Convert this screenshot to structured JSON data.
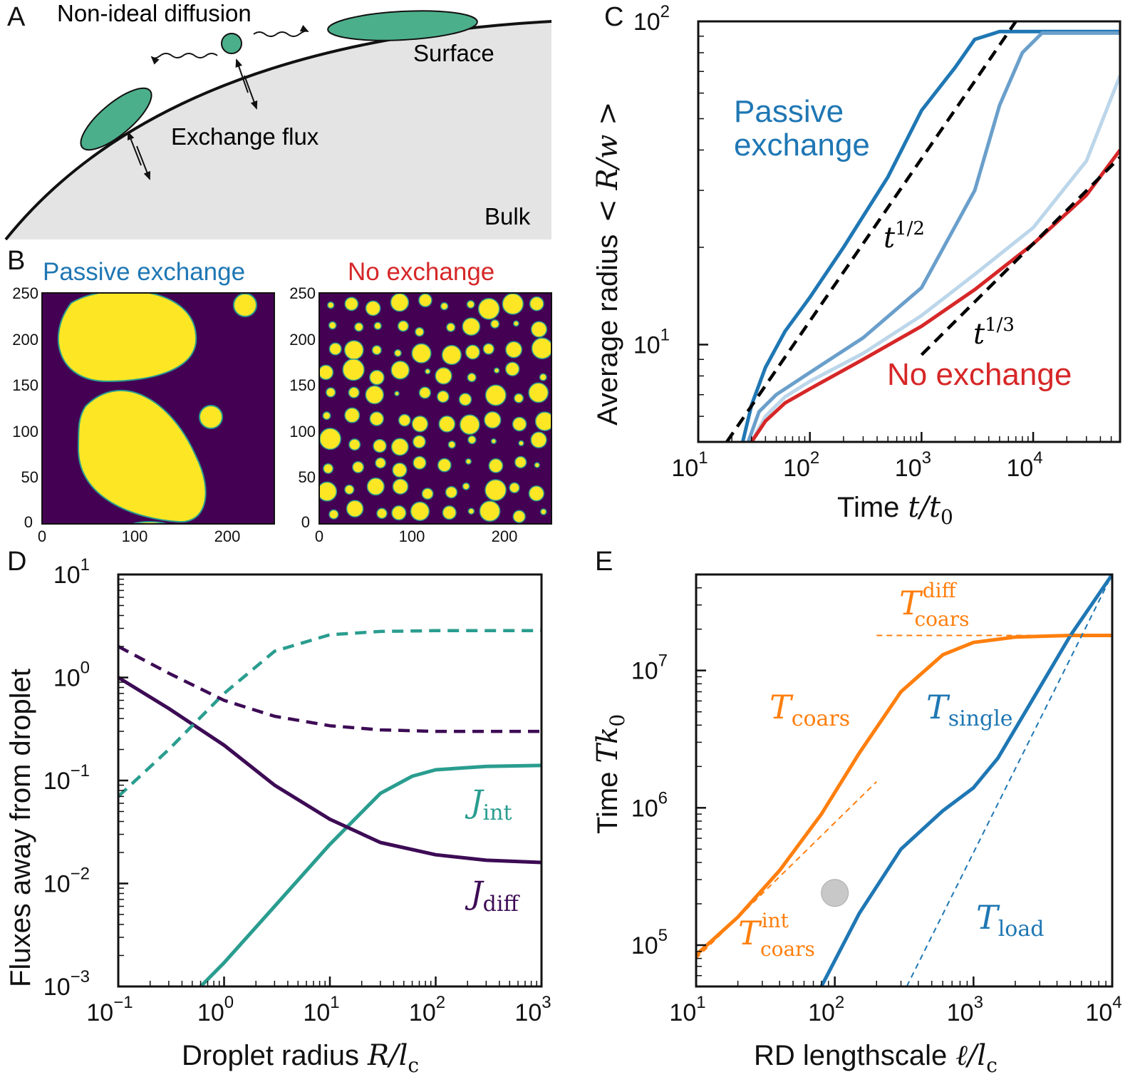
{
  "colors": {
    "passive": "#1f77b4",
    "no_exchange": "#d62728",
    "teal": "#2a9d8f",
    "purple": "#3d0b55",
    "orange": "#ff7f0e",
    "droplet": "#4caf8c",
    "bulk": "#e4e4e4",
    "img_bg": "#440154",
    "img_fg": "#fde725"
  },
  "panelA": {
    "letter": "A",
    "labels": {
      "nonideal": "Non-ideal diffusion",
      "surface": "Surface",
      "exchange": "Exchange flux",
      "bulk": "Bulk"
    }
  },
  "panelB": {
    "letter": "B",
    "left_title": "Passive exchange",
    "right_title": "No exchange",
    "y_ticks": [
      "250",
      "200",
      "150",
      "100",
      "50",
      "0"
    ],
    "x_ticks": [
      "0",
      "100",
      "200"
    ]
  },
  "panelC": {
    "letter": "C",
    "label_passive_1": "Passive",
    "label_passive_2": "exchange",
    "label_none": "No exchange",
    "label_half": {
      "base": "t",
      "exp": "1/2"
    },
    "label_third": {
      "base": "t",
      "exp": "1/3"
    },
    "ylabel": "Average radius",
    "ylabel_math": "< R/w >",
    "xlabel": "Time",
    "xlabel_math": "t/t",
    "xlabel_sub": "0"
  },
  "panelD": {
    "letter": "D",
    "ylabel": "Fluxes away from droplet",
    "xlabel": "Droplet radius",
    "xlabel_math": "R/l",
    "xlabel_sub": "c",
    "label_int": {
      "base": "J",
      "sub": "int"
    },
    "label_diff": {
      "base": "J",
      "sub": "diff"
    }
  },
  "panelE": {
    "letter": "E",
    "ylabel": "Time",
    "ylabel_math": "Tk",
    "ylabel_sub": "0",
    "xlabel": "RD lengthscale",
    "xlabel_math": "ℓ/l",
    "xlabel_sub": "c",
    "label_coars_diff": {
      "base": "T",
      "sup": "diff",
      "sub": "coars"
    },
    "label_coars": {
      "base": "T",
      "sub": "coars"
    },
    "label_single": {
      "base": "T",
      "sub": "single"
    },
    "label_coars_int": {
      "base": "T",
      "sup": "int",
      "sub": "coars"
    },
    "label_load": {
      "base": "T",
      "sub": "load"
    }
  },
  "chart_data": [
    {
      "id": "C",
      "type": "line",
      "xscale": "log",
      "yscale": "log",
      "xlim": [
        10,
        60000
      ],
      "ylim": [
        5,
        100
      ],
      "x_ticks": [
        {
          "base": "10",
          "exp": "1"
        },
        {
          "base": "10",
          "exp": "2"
        },
        {
          "base": "10",
          "exp": "3"
        },
        {
          "base": "10",
          "exp": "4"
        }
      ],
      "y_ticks": [
        {
          "base": "10",
          "exp": "1"
        },
        {
          "base": "10",
          "exp": "2"
        }
      ],
      "series": [
        {
          "name": "Passive exchange",
          "color": "#1f77b4",
          "x": [
            25,
            30,
            40,
            60,
            100,
            200,
            500,
            1000,
            2000,
            3000,
            5000,
            60000
          ],
          "y": [
            5,
            6.5,
            8.5,
            11,
            14,
            20,
            33,
            53,
            72,
            88,
            93,
            93
          ]
        },
        {
          "name": "intermediate 1",
          "color": "#6a9fcb",
          "x": [
            28,
            35,
            50,
            100,
            300,
            1000,
            3000,
            5000,
            8000,
            12000,
            60000
          ],
          "y": [
            5,
            6.2,
            7,
            8.2,
            10.5,
            15,
            30,
            55,
            80,
            92,
            92
          ]
        },
        {
          "name": "intermediate 2",
          "color": "#bcd6ea",
          "x": [
            30,
            40,
            60,
            100,
            300,
            1000,
            3000,
            10000,
            30000,
            60000
          ],
          "y": [
            5,
            6,
            6.9,
            7.7,
            9.4,
            12.3,
            16.5,
            23,
            37,
            68
          ]
        },
        {
          "name": "No exchange",
          "color": "#d62728",
          "x": [
            30,
            40,
            60,
            100,
            300,
            1000,
            3000,
            10000,
            30000,
            60000
          ],
          "y": [
            5,
            5.8,
            6.6,
            7.3,
            9,
            11.4,
            14.8,
            20.5,
            29,
            40
          ]
        },
        {
          "name": "t^1/2",
          "style": "dashed",
          "color": "#000000",
          "x": [
            18,
            7000
          ],
          "y": [
            5,
            100
          ]
        },
        {
          "name": "t^1/3",
          "style": "dashed",
          "color": "#000000",
          "x": [
            1000,
            60000
          ],
          "y": [
            9.3,
            38
          ]
        }
      ]
    },
    {
      "id": "D",
      "type": "line",
      "xscale": "log",
      "yscale": "log",
      "xlim": [
        0.1,
        1000
      ],
      "ylim": [
        0.001,
        10
      ],
      "x_ticks": [
        {
          "base": "10",
          "exp": "−1"
        },
        {
          "base": "10",
          "exp": "0"
        },
        {
          "base": "10",
          "exp": "1"
        },
        {
          "base": "10",
          "exp": "2"
        },
        {
          "base": "10",
          "exp": "3"
        }
      ],
      "y_ticks": [
        {
          "base": "10",
          "exp": "−3"
        },
        {
          "base": "10",
          "exp": "−2"
        },
        {
          "base": "10",
          "exp": "−1"
        },
        {
          "base": "10",
          "exp": "0"
        },
        {
          "base": "10",
          "exp": "1"
        }
      ],
      "series": [
        {
          "name": "J_int (solid)",
          "color": "#2a9d8f",
          "x": [
            0.6,
            1,
            3,
            10,
            30,
            60,
            100,
            300,
            1000
          ],
          "y": [
            0.001,
            0.0017,
            0.006,
            0.024,
            0.075,
            0.11,
            0.127,
            0.137,
            0.14
          ]
        },
        {
          "name": "J_diff (solid)",
          "color": "#3d0b55",
          "x": [
            0.1,
            0.3,
            1,
            3,
            10,
            30,
            100,
            300,
            1000
          ],
          "y": [
            1,
            0.5,
            0.22,
            0.09,
            0.042,
            0.025,
            0.019,
            0.0168,
            0.016
          ]
        },
        {
          "name": "J_int (dashed)",
          "color": "#2a9d8f",
          "style": "dashed",
          "x": [
            0.1,
            0.3,
            1,
            3,
            10,
            30,
            100,
            1000
          ],
          "y": [
            0.07,
            0.2,
            0.7,
            1.8,
            2.6,
            2.8,
            2.85,
            2.85
          ]
        },
        {
          "name": "J_diff (dashed)",
          "color": "#3d0b55",
          "style": "dashed",
          "x": [
            0.1,
            0.3,
            1,
            3,
            10,
            30,
            100,
            1000
          ],
          "y": [
            2,
            1.1,
            0.6,
            0.42,
            0.34,
            0.31,
            0.3,
            0.3
          ]
        }
      ]
    },
    {
      "id": "E",
      "type": "line",
      "xscale": "log",
      "yscale": "log",
      "xlim": [
        10,
        10000
      ],
      "ylim": [
        50000,
        50000000
      ],
      "x_ticks": [
        {
          "base": "10",
          "exp": "1"
        },
        {
          "base": "10",
          "exp": "2"
        },
        {
          "base": "10",
          "exp": "3"
        },
        {
          "base": "10",
          "exp": "4"
        }
      ],
      "y_ticks": [
        {
          "base": "10",
          "exp": "5"
        },
        {
          "base": "10",
          "exp": "6"
        },
        {
          "base": "10",
          "exp": "7"
        }
      ],
      "series": [
        {
          "name": "T_coars",
          "color": "#ff7f0e",
          "x": [
            10,
            20,
            40,
            80,
            150,
            300,
            600,
            1000,
            2000,
            5000,
            10000
          ],
          "y": [
            85000,
            160000,
            350000,
            900000,
            2500000,
            7000000,
            13000000,
            16000000,
            17500000,
            18000000,
            18000000
          ]
        },
        {
          "name": "T_single",
          "color": "#1f77b4",
          "x": [
            80,
            150,
            300,
            600,
            1000,
            1500,
            2500,
            5000,
            10000
          ],
          "y": [
            50000,
            170000,
            500000,
            950000,
            1400000,
            2300000,
            5500000,
            18000000,
            50000000
          ]
        },
        {
          "name": "T_coars^diff",
          "color": "#ff7f0e",
          "style": "dashed",
          "x": [
            200,
            10000
          ],
          "y": [
            18000000,
            18000000
          ]
        },
        {
          "name": "T_coars^int",
          "color": "#ff7f0e",
          "style": "dashed",
          "x": [
            10,
            200
          ],
          "y": [
            80000,
            1550000
          ]
        },
        {
          "name": "T_load",
          "color": "#1f77b4",
          "style": "dashed",
          "x": [
            330,
            10000
          ],
          "y": [
            50000,
            50000000
          ]
        }
      ],
      "marker": {
        "x": 100,
        "y": 240000,
        "color": "#c8c8c8"
      }
    }
  ]
}
